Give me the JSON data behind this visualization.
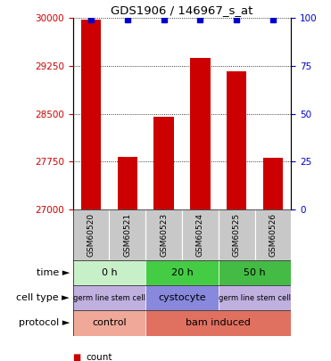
{
  "title": "GDS1906 / 146967_s_at",
  "samples": [
    "GSM60520",
    "GSM60521",
    "GSM60523",
    "GSM60524",
    "GSM60525",
    "GSM60526"
  ],
  "counts": [
    29980,
    27820,
    28450,
    29370,
    29170,
    27810
  ],
  "percentiles": [
    99,
    99,
    99,
    99,
    99,
    99
  ],
  "ylim_left": [
    27000,
    30000
  ],
  "ylim_right": [
    0,
    100
  ],
  "yticks_left": [
    27000,
    27750,
    28500,
    29250,
    30000
  ],
  "yticks_right": [
    0,
    25,
    50,
    75,
    100
  ],
  "bar_color": "#cc0000",
  "percentile_color": "#0000cc",
  "time_groups": [
    {
      "label": "0 h",
      "start": 0,
      "end": 1,
      "color": "#c8f0c8"
    },
    {
      "label": "20 h",
      "start": 2,
      "end": 3,
      "color": "#44cc44"
    },
    {
      "label": "50 h",
      "start": 4,
      "end": 5,
      "color": "#44bb44"
    }
  ],
  "celltype_groups": [
    {
      "label": "germ line stem cell",
      "start": 0,
      "end": 1,
      "color": "#c0b0e0",
      "fontsize": 6
    },
    {
      "label": "cystocyte",
      "start": 2,
      "end": 3,
      "color": "#8888dd",
      "fontsize": 8
    },
    {
      "label": "germ line stem cell",
      "start": 4,
      "end": 5,
      "color": "#c0b0e0",
      "fontsize": 6
    }
  ],
  "protocol_groups": [
    {
      "label": "control",
      "start": 0,
      "end": 1,
      "color": "#f0a898"
    },
    {
      "label": "bam induced",
      "start": 2,
      "end": 5,
      "color": "#e07060"
    }
  ],
  "row_labels": [
    "time",
    "cell type",
    "protocol"
  ],
  "sample_bg": "#c8c8c8"
}
